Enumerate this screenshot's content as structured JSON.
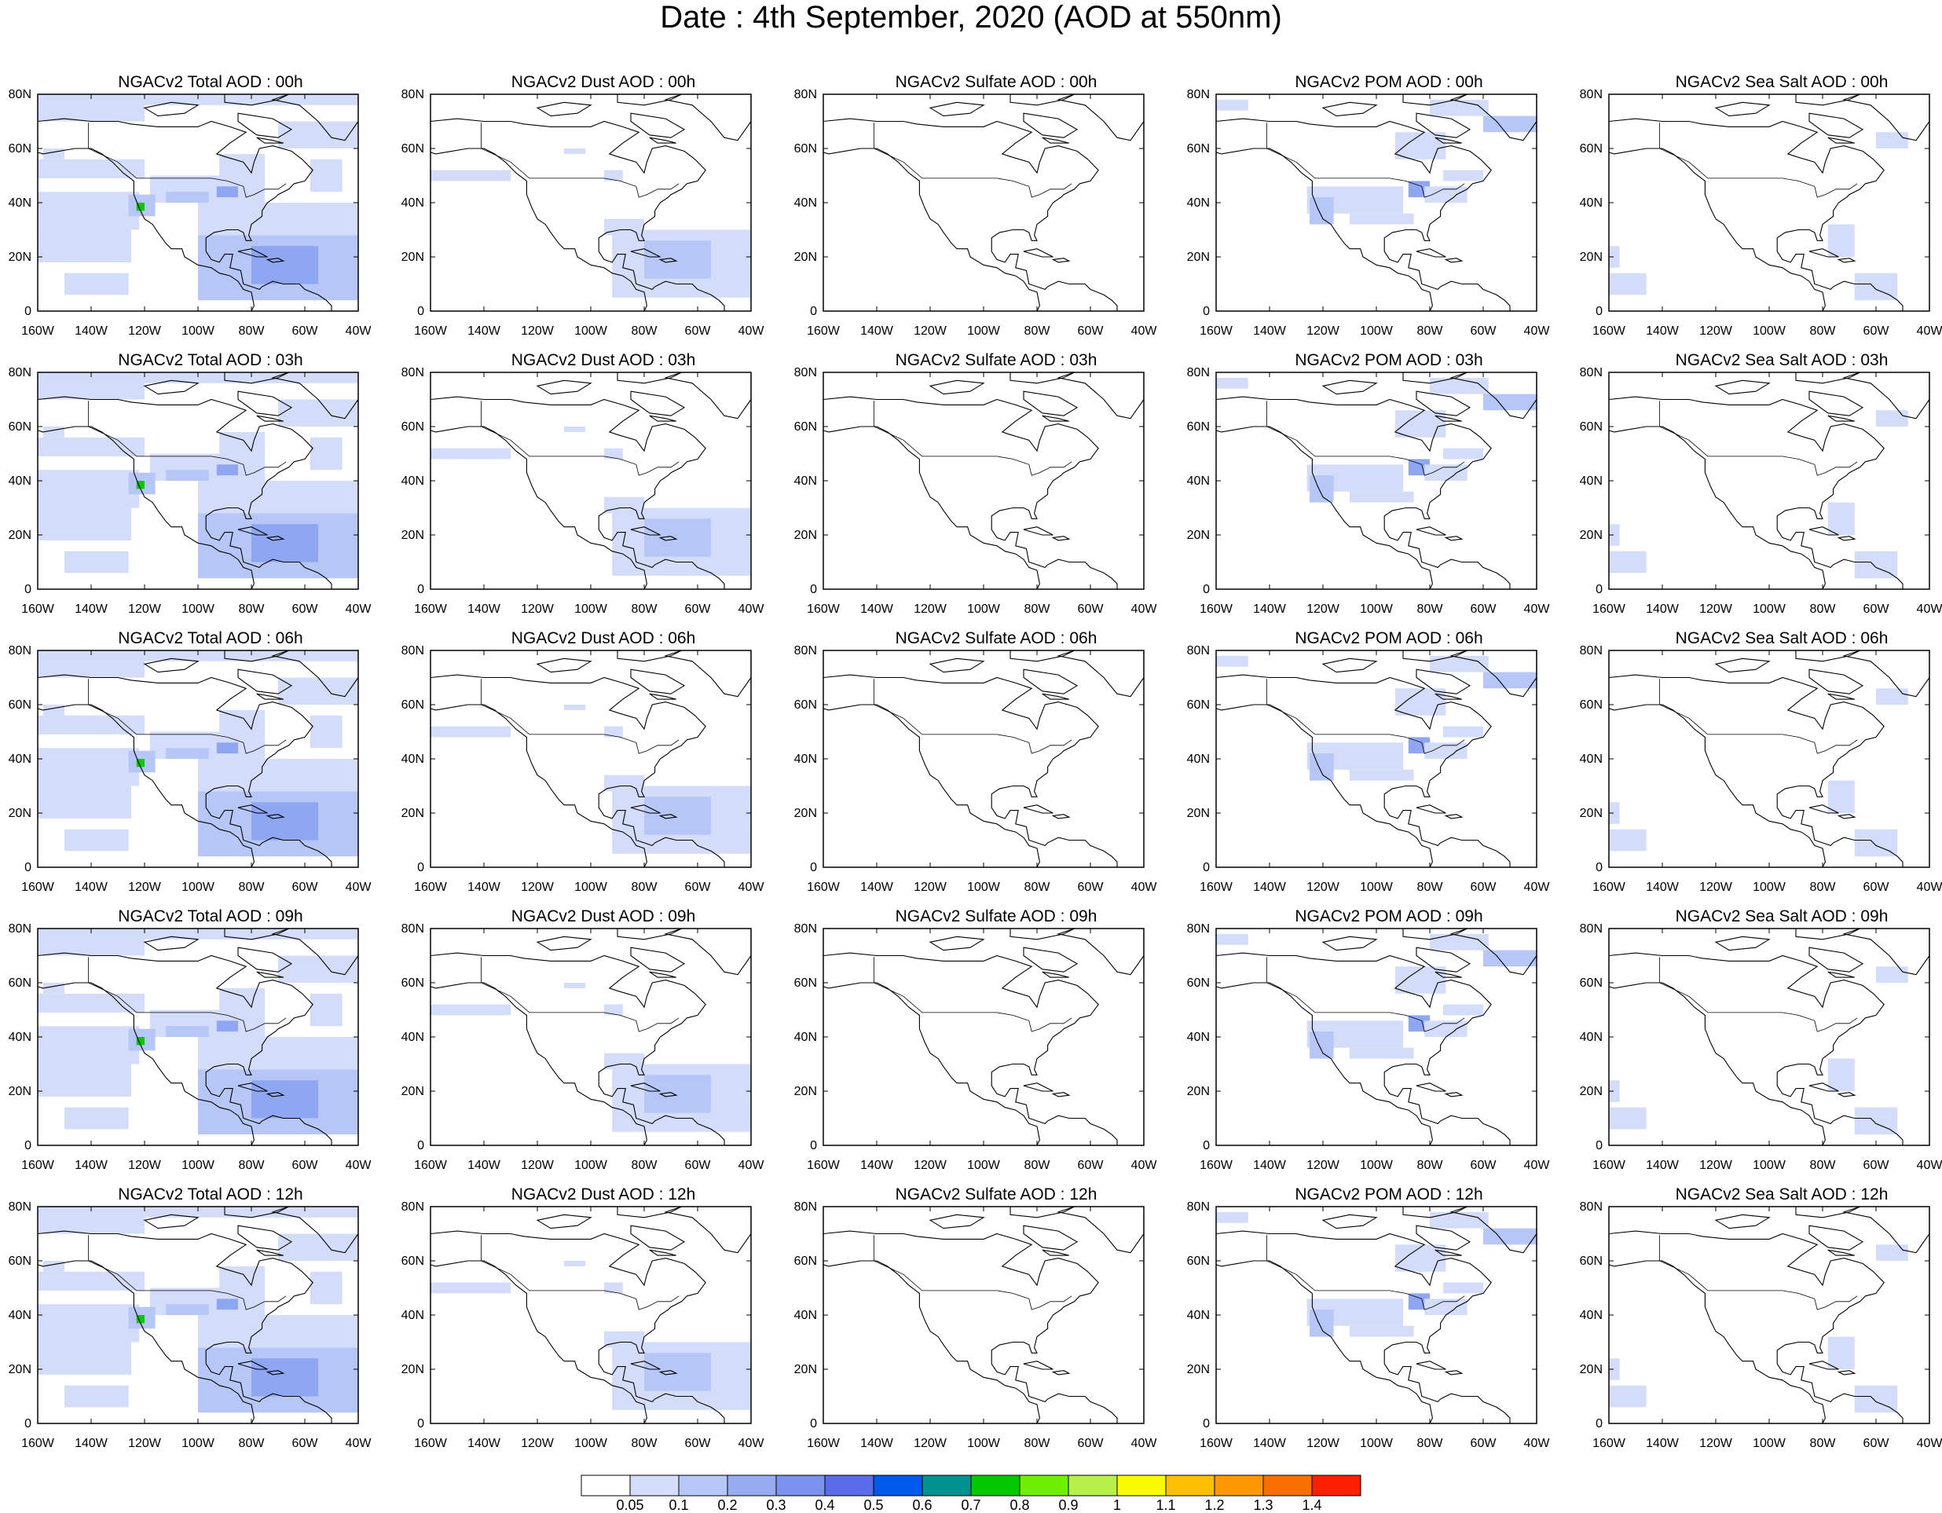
{
  "title": "Date : 4th September, 2020 (AOD at 550nm)",
  "panels": [
    [
      "NGACv2 Total AOD : 00h",
      "NGACv2 Dust AOD : 00h",
      "NGACv2 Sulfate AOD : 00h",
      "NGACv2 POM AOD : 00h",
      "NGACv2 Sea Salt AOD : 00h"
    ],
    [
      "NGACv2 Total AOD : 03h",
      "NGACv2 Dust AOD : 03h",
      "NGACv2 Sulfate AOD : 03h",
      "NGACv2 POM AOD : 03h",
      "NGACv2 Sea Salt AOD : 03h"
    ],
    [
      "NGACv2 Total AOD : 06h",
      "NGACv2 Dust AOD : 06h",
      "NGACv2 Sulfate AOD : 06h",
      "NGACv2 POM AOD : 06h",
      "NGACv2 Sea Salt AOD : 06h"
    ],
    [
      "NGACv2 Total AOD : 09h",
      "NGACv2 Dust AOD : 09h",
      "NGACv2 Sulfate AOD : 09h",
      "NGACv2 POM AOD : 09h",
      "NGACv2 Sea Salt  AOD : 09h"
    ],
    [
      "NGACv2 Total AOD  : 12h",
      "NGACv2 Dust AOD : 12h",
      "NGACv2 Sulfate AOD : 12h",
      "NGACv2 POM  AOD : 12h",
      "NGACv2 Sea Salt  AOD : 12h"
    ]
  ],
  "map": {
    "lon_ticks": [
      "160W",
      "140W",
      "120W",
      "100W",
      "80W",
      "60W",
      "40W"
    ],
    "lat_ticks": [
      "0",
      "20N",
      "40N",
      "60N",
      "80N"
    ]
  },
  "colorbar": {
    "labels": [
      "0.05",
      "0.1",
      "0.2",
      "0.3",
      "0.4",
      "0.5",
      "0.6",
      "0.7",
      "0.8",
      "0.9",
      "1",
      "1.1",
      "1.2",
      "1.3",
      "1.4"
    ],
    "colors": [
      "#ffffff",
      "#d3dcf9",
      "#b6c6f6",
      "#98acf2",
      "#7c93ee",
      "#5a6ce9",
      "#0059ed",
      "#009191",
      "#02c800",
      "#6ef000",
      "#b8f04a",
      "#fafa00",
      "#fdbf00",
      "#fd9800",
      "#fa7000",
      "#fa2000"
    ]
  },
  "colors": {
    "aerosol_light": "#d3dcf9",
    "aerosol_medium": "#b6c6f6",
    "aerosol_dark": "#8fa6f2",
    "hotspot": "#02c800"
  }
}
